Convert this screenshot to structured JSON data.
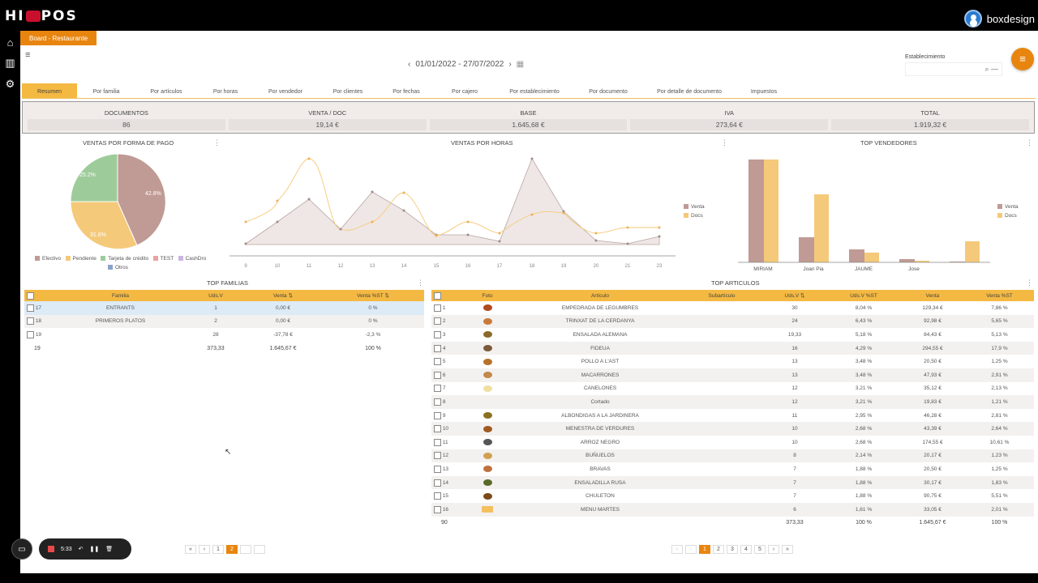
{
  "header": {
    "logo_text_left": "HI",
    "logo_text_right": "POS",
    "user_name": "boxdesign"
  },
  "sidebar": {
    "items": [
      {
        "name": "home",
        "glyph": "⌂"
      },
      {
        "name": "reports",
        "glyph": "▥"
      },
      {
        "name": "settings",
        "glyph": "⚙"
      }
    ]
  },
  "board": {
    "title": "Board - Restaurante",
    "menu_glyph": "≡"
  },
  "date_range": {
    "prev": "‹",
    "label": "01/01/2022 - 27/07/2022",
    "next": "›",
    "calendar": "▦"
  },
  "establecimiento": {
    "label": "Establecimiento",
    "value": "",
    "search_glyph": "⌕ —"
  },
  "fab_glyph": "≡",
  "tabs": [
    "Resumen",
    "Por familia",
    "Por artículos",
    "Por horas",
    "Por vendedor",
    "Por clientes",
    "Por fechas",
    "Por cajero",
    "Por establecimiento",
    "Por documento",
    "Por detalle de documento",
    "Impuestos"
  ],
  "summary": [
    {
      "label": "DOCUMENTOS",
      "value": "86"
    },
    {
      "label": "VENTA / DOC",
      "value": "19,14 €"
    },
    {
      "label": "BASE",
      "value": "1.645,68 €"
    },
    {
      "label": "IVA",
      "value": "273,64 €"
    },
    {
      "label": "TOTAL",
      "value": "1.919,32 €"
    }
  ],
  "widgets": {
    "pago_title": "VENTAS POR FORMA DE PAGO",
    "horas_title": "VENTAS POR HORAS",
    "vendedores_title": "TOP VENDEDORES",
    "familias_title": "TOP FAMILIAS",
    "articulos_title": "TOP ARTICULOS",
    "menu_glyph": "⋮"
  },
  "colors": {
    "accent": "#e8850f",
    "header_yellow": "#f4b942",
    "venta": "#c09a94",
    "docs": "#f5c97a",
    "tarjeta": "#9dcc9a"
  },
  "chart_data": [
    {
      "type": "pie",
      "title": "VENTAS POR FORMA DE PAGO",
      "categories": [
        "Efectivo",
        "Pendiente",
        "Tarjeta de crédito",
        "TEST",
        "CashDro",
        "Otros"
      ],
      "values": [
        42.8,
        31.6,
        25.2,
        0,
        0,
        0
      ],
      "labels": [
        "42.8%",
        "31.6%",
        "25.2%"
      ],
      "legend_position": "bottom"
    },
    {
      "type": "line",
      "title": "VENTAS POR HORAS",
      "categories": [
        "9",
        "10",
        "11",
        "12",
        "13",
        "14",
        "15",
        "16",
        "17",
        "18",
        "19",
        "20",
        "21",
        "23"
      ],
      "series": [
        {
          "name": "Venta",
          "values": [
            1,
            28,
            55,
            20,
            63,
            40,
            12,
            12,
            3,
            108,
            38,
            3,
            0,
            6
          ]
        },
        {
          "name": "Docs",
          "values": [
            28,
            53,
            101,
            20,
            26,
            62,
            12,
            28,
            12,
            33,
            35,
            13,
            23,
            23
          ]
        }
      ],
      "legend_position": "right"
    },
    {
      "type": "bar",
      "title": "TOP VENDEDORES",
      "categories": [
        "MIRIAM",
        "Joan Pia",
        "JAUME",
        "Jose",
        ""
      ],
      "series": [
        {
          "name": "Venta",
          "values": [
            100,
            24,
            12,
            3,
            0.5
          ]
        },
        {
          "name": "Docs",
          "values": [
            100,
            66,
            9,
            1.5,
            20
          ]
        }
      ],
      "legend_position": "right"
    }
  ],
  "familias": {
    "headers": [
      "Familia",
      "Uds.V",
      "Venta ⇅",
      "Venta %ST ⇅"
    ],
    "rows": [
      {
        "n": "17",
        "familia": "ENTRANTS",
        "uds": "1",
        "venta": "0,00 €",
        "pct": "0 %"
      },
      {
        "n": "18",
        "familia": "PRIMEROS PLATOS",
        "uds": "2",
        "venta": "0,00 €",
        "pct": "0 %"
      },
      {
        "n": "19",
        "familia": "",
        "uds": "28",
        "venta": "-37,78 €",
        "pct": "-2,3 %"
      }
    ],
    "footer": {
      "n": "19",
      "uds": "373,33",
      "venta": "1.645,67 €",
      "pct": "100 %"
    },
    "pager": [
      "«",
      "‹",
      "1",
      "2",
      "›",
      "»"
    ]
  },
  "articulos": {
    "headers": [
      "Foto",
      "Artículo",
      "Subartículo",
      "Uds.V ⇅",
      "Uds.V %ST",
      "Venta",
      "Venta %ST"
    ],
    "rows": [
      {
        "n": "1",
        "art": "EMPEDRADA DE LEGUMBRES",
        "uds": "30",
        "udspct": "8,04 %",
        "venta": "129,34 €",
        "pct": "7,86 %"
      },
      {
        "n": "2",
        "art": "TRINXAT DE LA CERDANYA",
        "uds": "24",
        "udspct": "6,43 %",
        "venta": "92,98 €",
        "pct": "5,65 %"
      },
      {
        "n": "3",
        "art": "ENSALADA ALEMANA",
        "uds": "19,33",
        "udspct": "5,18 %",
        "venta": "84,43 €",
        "pct": "5,13 %"
      },
      {
        "n": "4",
        "art": "FIDEUA",
        "uds": "16",
        "udspct": "4,29 %",
        "venta": "294,55 €",
        "pct": "17,9 %"
      },
      {
        "n": "5",
        "art": "POLLO A L'AST",
        "uds": "13",
        "udspct": "3,48 %",
        "venta": "20,50 €",
        "pct": "1,25 %"
      },
      {
        "n": "6",
        "art": "MACARRONES",
        "uds": "13",
        "udspct": "3,48 %",
        "venta": "47,93 €",
        "pct": "2,91 %"
      },
      {
        "n": "7",
        "art": "CANELONES",
        "uds": "12",
        "udspct": "3,21 %",
        "venta": "35,12 €",
        "pct": "2,13 %"
      },
      {
        "n": "8",
        "art": "Cortado",
        "uds": "12",
        "udspct": "3,21 %",
        "venta": "19,83 €",
        "pct": "1,21 %"
      },
      {
        "n": "9",
        "art": "ALBONDIGAS A LA JARDINERA",
        "uds": "11",
        "udspct": "2,95 %",
        "venta": "46,28 €",
        "pct": "2,81 %"
      },
      {
        "n": "10",
        "art": "MENESTRA DE VERDURES",
        "uds": "10",
        "udspct": "2,68 %",
        "venta": "43,39 €",
        "pct": "2,64 %"
      },
      {
        "n": "11",
        "art": "ARROZ NEGRO",
        "uds": "10",
        "udspct": "2,68 %",
        "venta": "174,55 €",
        "pct": "10,61 %"
      },
      {
        "n": "12",
        "art": "BUÑUELOS",
        "uds": "8",
        "udspct": "2,14 %",
        "venta": "20,17 €",
        "pct": "1,23 %"
      },
      {
        "n": "13",
        "art": "BRAVAS",
        "uds": "7",
        "udspct": "1,88 %",
        "venta": "20,50 €",
        "pct": "1,25 %"
      },
      {
        "n": "14",
        "art": "ENSALADILLA RUSA",
        "uds": "7",
        "udspct": "1,88 %",
        "venta": "30,17 €",
        "pct": "1,83 %"
      },
      {
        "n": "15",
        "art": "CHULETON",
        "uds": "7",
        "udspct": "1,88 %",
        "venta": "90,75 €",
        "pct": "5,51 %"
      },
      {
        "n": "16",
        "art": "MENU MARTES",
        "uds": "6",
        "udspct": "1,61 %",
        "venta": "33,05 €",
        "pct": "2,01 %"
      }
    ],
    "footer": {
      "n": "90",
      "uds": "373,33",
      "udspct": "100 %",
      "venta": "1.645,67 €",
      "pct": "100 %"
    },
    "pager": [
      "«",
      "‹",
      "1",
      "2",
      "3",
      "4",
      "5",
      "›",
      "»"
    ]
  },
  "recorder": {
    "time": "5:33"
  }
}
